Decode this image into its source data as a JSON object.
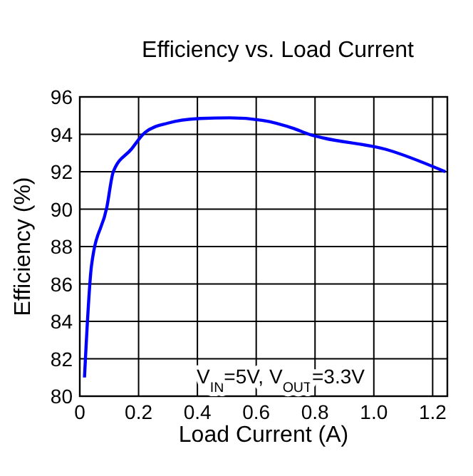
{
  "chart_data": {
    "type": "line",
    "title": "Efficiency vs. Load Current",
    "xlabel": "Load Current (A)",
    "ylabel": "Efficiency (%)",
    "x": [
      0.016,
      0.04,
      0.092,
      0.114,
      0.175,
      0.222,
      0.3,
      0.41,
      0.51,
      0.62,
      0.73,
      0.78,
      0.83,
      1.04,
      1.243
    ],
    "series": [
      {
        "color": "#0000ff",
        "values": [
          81.0,
          87.0,
          90.1,
          92.0,
          93.2,
          94.1,
          94.6,
          94.85,
          94.88,
          94.75,
          94.3,
          94.0,
          93.8,
          93.2,
          92.0
        ]
      }
    ],
    "xlim": [
      0,
      1.25
    ],
    "xticks": [
      0,
      0.2,
      0.4,
      0.6,
      0.8,
      {
        "value": 1,
        "label": "1.0"
      },
      1.2
    ],
    "ylim": [
      80,
      96
    ],
    "yticks": [
      80,
      82,
      84,
      86,
      88,
      90,
      92,
      94,
      96
    ],
    "grid": true,
    "marker": "none",
    "line_style": "solid",
    "annotations": [
      "V$_{IN}$=5V,  V$_{OUT}$=3.3V"
    ]
  }
}
